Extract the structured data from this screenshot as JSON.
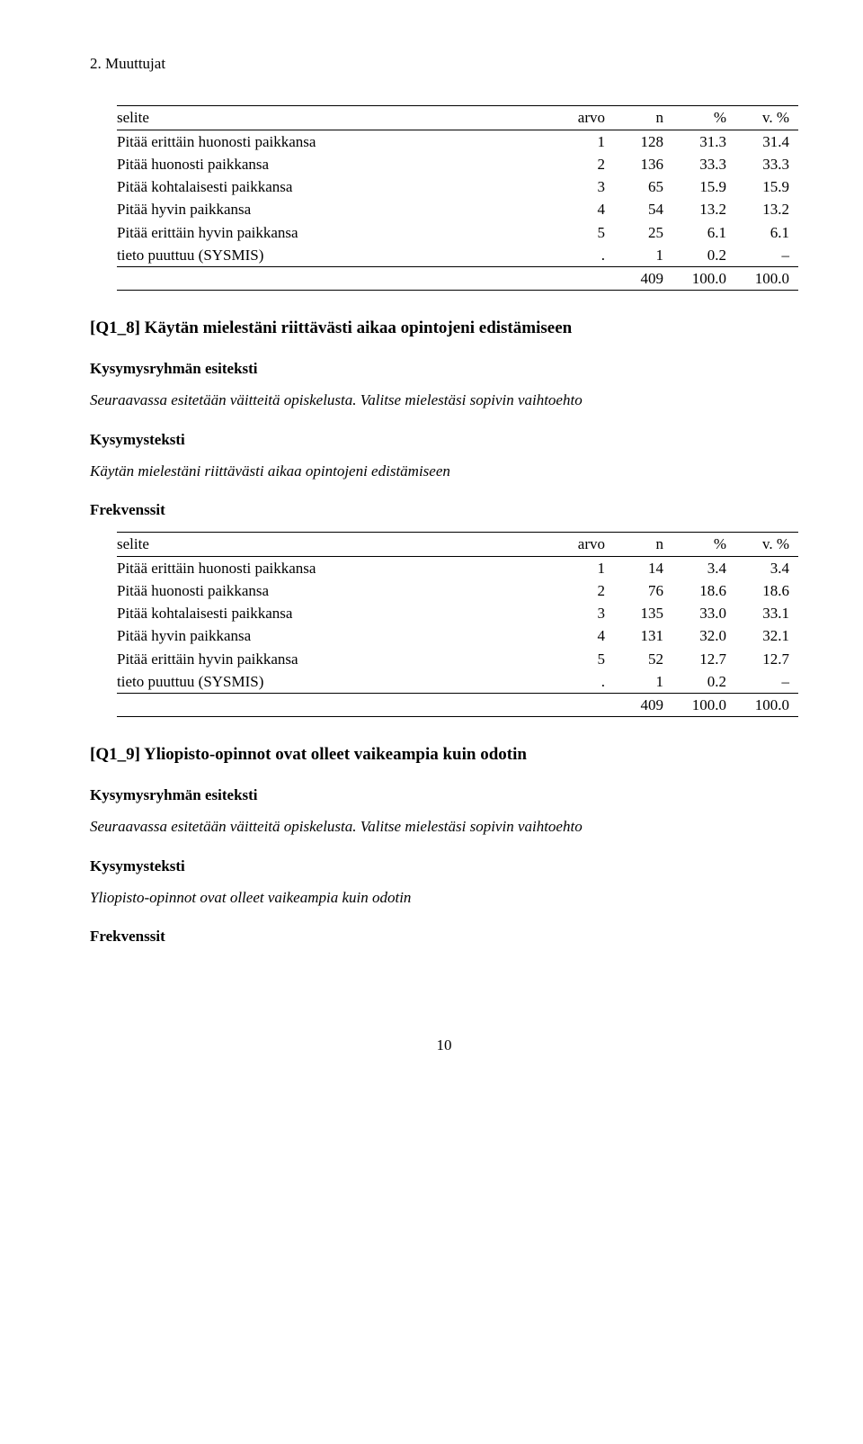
{
  "section_header": "2. Muuttujat",
  "col_headers": {
    "selite": "selite",
    "arvo": "arvo",
    "n": "n",
    "pct": "%",
    "vpct": "v. %"
  },
  "table1": {
    "rows": [
      {
        "label": "Pitää erittäin huonosti paikkansa",
        "arvo": "1",
        "n": "128",
        "pct": "31.3",
        "vpct": "31.4"
      },
      {
        "label": "Pitää huonosti paikkansa",
        "arvo": "2",
        "n": "136",
        "pct": "33.3",
        "vpct": "33.3"
      },
      {
        "label": "Pitää kohtalaisesti paikkansa",
        "arvo": "3",
        "n": "65",
        "pct": "15.9",
        "vpct": "15.9"
      },
      {
        "label": "Pitää hyvin paikkansa",
        "arvo": "4",
        "n": "54",
        "pct": "13.2",
        "vpct": "13.2"
      },
      {
        "label": "Pitää erittäin hyvin paikkansa",
        "arvo": "5",
        "n": "25",
        "pct": "6.1",
        "vpct": "6.1"
      },
      {
        "label": "tieto puuttuu (SYSMIS)",
        "arvo": ".",
        "n": "1",
        "pct": "0.2",
        "vpct": "–"
      }
    ],
    "total": {
      "n": "409",
      "pct": "100.0",
      "vpct": "100.0"
    }
  },
  "q18": {
    "title": "[Q1_8] Käytän mielestäni riittävästi aikaa opintojeni edistämiseen",
    "group_head": "Kysymysryhmän esiteksti",
    "group_text": "Seuraavassa esitetään väitteitä opiskelusta. Valitse mielestäsi sopivin vaihtoehto",
    "q_head": "Kysymysteksti",
    "q_text": "Käytän mielestäni riittävästi aikaa opintojeni edistämiseen",
    "freq_head": "Frekvenssit"
  },
  "table2": {
    "rows": [
      {
        "label": "Pitää erittäin huonosti paikkansa",
        "arvo": "1",
        "n": "14",
        "pct": "3.4",
        "vpct": "3.4"
      },
      {
        "label": "Pitää huonosti paikkansa",
        "arvo": "2",
        "n": "76",
        "pct": "18.6",
        "vpct": "18.6"
      },
      {
        "label": "Pitää kohtalaisesti paikkansa",
        "arvo": "3",
        "n": "135",
        "pct": "33.0",
        "vpct": "33.1"
      },
      {
        "label": "Pitää hyvin paikkansa",
        "arvo": "4",
        "n": "131",
        "pct": "32.0",
        "vpct": "32.1"
      },
      {
        "label": "Pitää erittäin hyvin paikkansa",
        "arvo": "5",
        "n": "52",
        "pct": "12.7",
        "vpct": "12.7"
      },
      {
        "label": "tieto puuttuu (SYSMIS)",
        "arvo": ".",
        "n": "1",
        "pct": "0.2",
        "vpct": "–"
      }
    ],
    "total": {
      "n": "409",
      "pct": "100.0",
      "vpct": "100.0"
    }
  },
  "q19": {
    "title": "[Q1_9] Yliopisto-opinnot ovat olleet vaikeampia kuin odotin",
    "group_head": "Kysymysryhmän esiteksti",
    "group_text": "Seuraavassa esitetään väitteitä opiskelusta. Valitse mielestäsi sopivin vaihtoehto",
    "q_head": "Kysymysteksti",
    "q_text": "Yliopisto-opinnot ovat olleet vaikeampia kuin odotin",
    "freq_head": "Frekvenssit"
  },
  "page_number": "10"
}
